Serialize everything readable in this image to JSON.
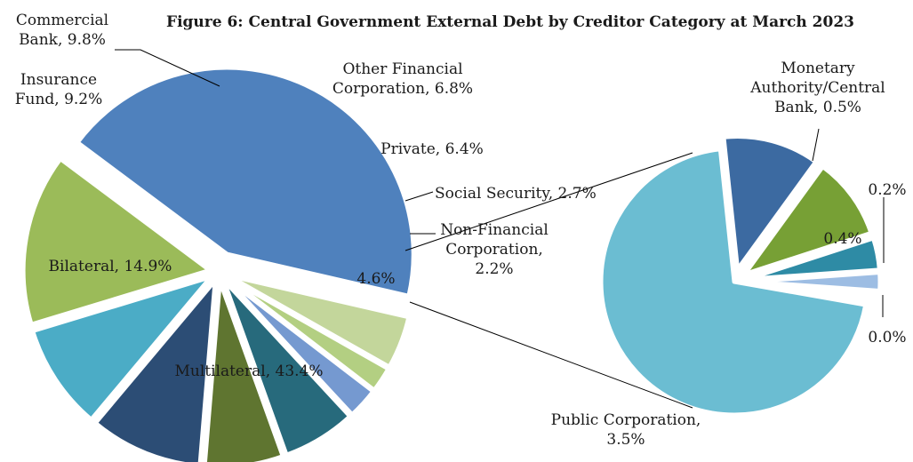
{
  "chart_data": {
    "type": "pie",
    "title": "Figure 6: Central Government External Debt by Creditor Category at March 2023",
    "main_pie": {
      "slices": [
        {
          "name": "Multilateral",
          "value": 43.4,
          "label": [
            "Multilateral, 43.4%"
          ],
          "color": "#4f81bd"
        },
        {
          "name": "Bilateral",
          "value": 14.9,
          "label": [
            "Bilateral, 14.9%"
          ],
          "color": "#9bbb59"
        },
        {
          "name": "Insurance Fund",
          "value": 9.2,
          "label": [
            "Insurance",
            "Fund, 9.2%"
          ],
          "color": "#4bacc6"
        },
        {
          "name": "Commercial Bank",
          "value": 9.8,
          "label": [
            "Commercial",
            "Bank, 9.8%"
          ],
          "color": "#2c4d75"
        },
        {
          "name": "Other Financial Corporation",
          "value": 6.8,
          "label": [
            "Other Financial",
            "Corporation, 6.8%"
          ],
          "color": "#5f7530"
        },
        {
          "name": "Private",
          "value": 6.4,
          "label": [
            "Private, 6.4%"
          ],
          "color": "#276a7c"
        },
        {
          "name": "Social Security",
          "value": 2.7,
          "label": [
            "Social Security, 2.7%"
          ],
          "color": "#7599d0"
        },
        {
          "name": "Non-Financial Corporation",
          "value": 2.2,
          "label": [
            "Non-Financial",
            "Corporation,",
            "2.2%"
          ],
          "color": "#b3cf82"
        },
        {
          "name": "Other",
          "value": 4.6,
          "label": [
            "4.6%"
          ],
          "color": "#c3d69b"
        }
      ]
    },
    "secondary_pie": {
      "slices": [
        {
          "name": "Public Corporation",
          "value": 3.5,
          "label": [
            "Public Corporation,",
            "3.5%"
          ],
          "color": "#6bbdd2"
        },
        {
          "name": "Monetary Authority/Central Bank",
          "value": 0.5,
          "label": [
            "Monetary",
            "Authority/Central",
            "Bank, 0.5%"
          ],
          "color": "#3c6aa1"
        },
        {
          "name": "Slice 0.4%",
          "value": 0.4,
          "label": [
            "0.4%"
          ],
          "color": "#77a035"
        },
        {
          "name": "Slice 0.2%",
          "value": 0.2,
          "label": [
            "0.2%"
          ],
          "color": "#2e8ba5"
        },
        {
          "name": "Slice 0.0%",
          "value": 0.0,
          "label": [
            "0.0%"
          ],
          "color": "#9dbde3"
        }
      ]
    }
  }
}
